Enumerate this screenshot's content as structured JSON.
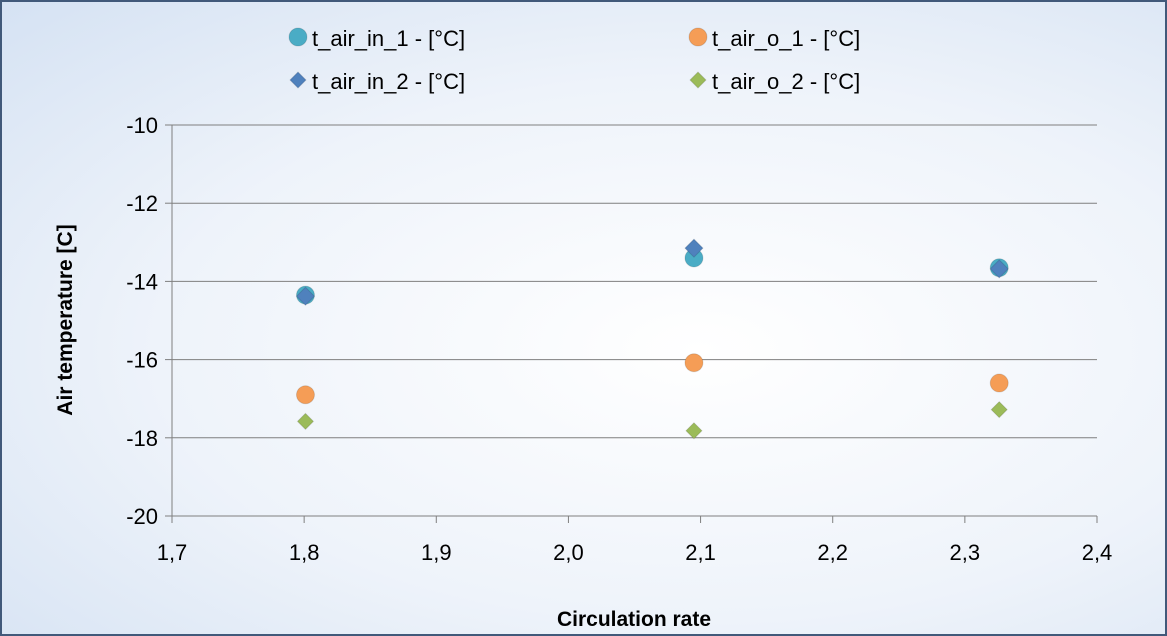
{
  "chart_data": {
    "type": "scatter",
    "title": "",
    "xlabel": "Circulation rate",
    "ylabel": "Air temperature [C]",
    "xlim": [
      1.7,
      2.4
    ],
    "ylim": [
      -20,
      -10
    ],
    "xticks": [
      "1,7",
      "1,8",
      "1,9",
      "2,0",
      "2,1",
      "2,2",
      "2,3",
      "2,4"
    ],
    "yticks": [
      "-10",
      "-12",
      "-14",
      "-16",
      "-18",
      "-20"
    ],
    "grid": "horizontal",
    "legend_position": "top",
    "series": [
      {
        "name": "t_air_in_1 - [°C]",
        "marker": "circle",
        "color": "#4aacc5",
        "x": [
          1.801,
          2.095,
          2.326
        ],
        "y": [
          -14.35,
          -13.4,
          -13.65
        ]
      },
      {
        "name": "t_air_o_1 - [°C]",
        "marker": "circle",
        "color": "#f59d56",
        "x": [
          1.801,
          2.095,
          2.326
        ],
        "y": [
          -16.9,
          -16.08,
          -16.6
        ]
      },
      {
        "name": "t_air_in_2 - [°C]",
        "marker": "diamond",
        "color": "#4f81bd",
        "x": [
          1.801,
          2.095,
          2.326
        ],
        "y": [
          -14.38,
          -13.15,
          -13.68
        ]
      },
      {
        "name": "t_air_o_2 - [°C]",
        "marker": "diamond",
        "color": "#9bbb59",
        "x": [
          1.801,
          2.095,
          2.326
        ],
        "y": [
          -17.58,
          -17.82,
          -17.28
        ]
      }
    ]
  }
}
